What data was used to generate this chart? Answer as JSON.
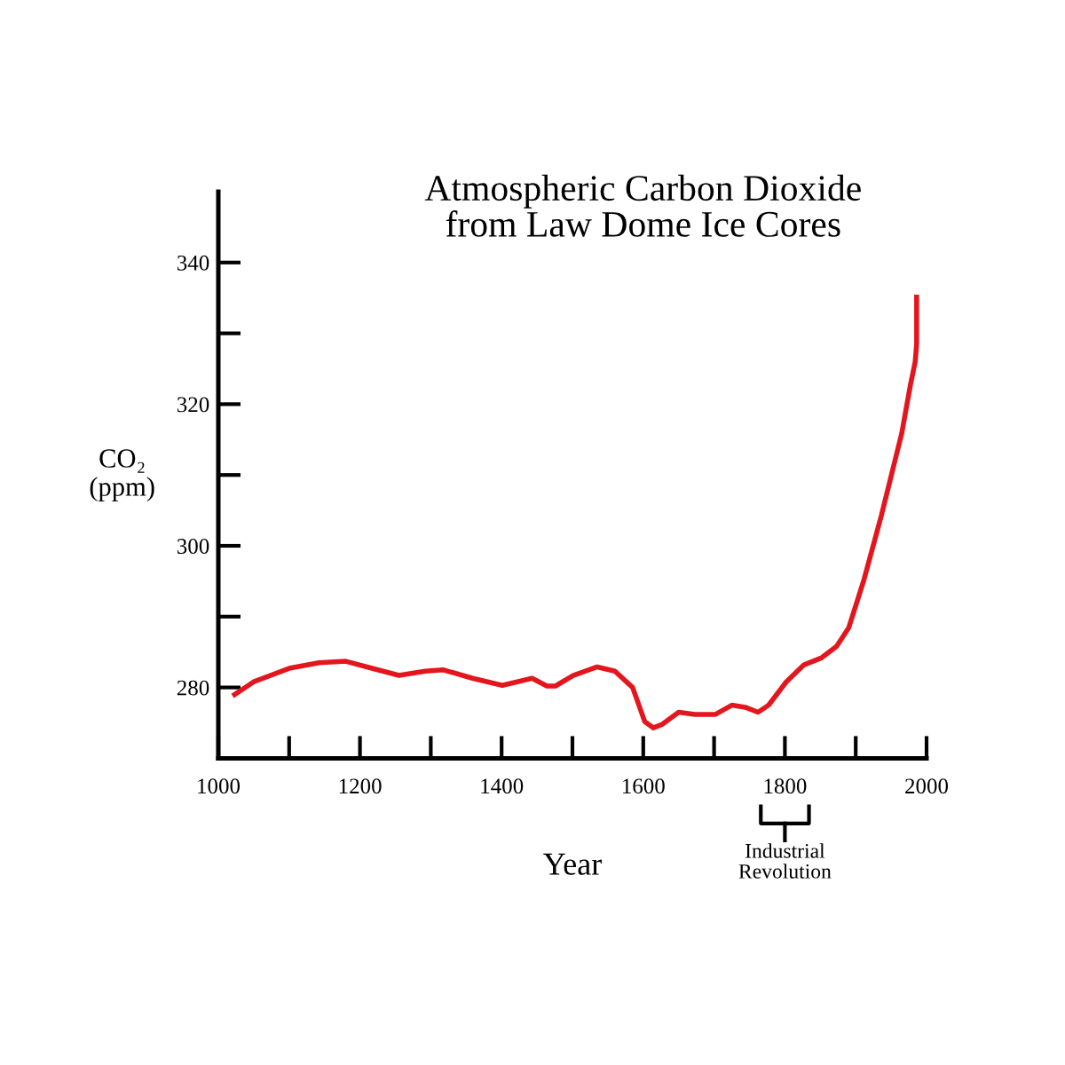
{
  "chart_data": {
    "type": "line",
    "title": "Atmospheric Carbon Dioxide\nfrom Law Dome Ice Cores",
    "xlabel": "Year",
    "ylabel": "CO₂\n(ppm)",
    "series": [
      {
        "color": "#e3161d",
        "x": [
          1023,
          1050,
          1100,
          1142,
          1180,
          1217,
          1255,
          1292,
          1317,
          1359,
          1401,
          1443,
          1464,
          1476,
          1501,
          1535,
          1560,
          1585,
          1602,
          1614,
          1627,
          1650,
          1673,
          1702,
          1725,
          1744,
          1762,
          1777,
          1802,
          1827,
          1852,
          1873,
          1890,
          1911,
          1936,
          1965,
          1977,
          1984,
          1986,
          1986
        ],
        "values": [
          279.0,
          280.8,
          282.7,
          283.5,
          283.7,
          282.7,
          281.7,
          282.3,
          282.5,
          281.3,
          280.3,
          281.3,
          280.2,
          280.2,
          281.7,
          282.9,
          282.3,
          280.0,
          275.2,
          274.3,
          274.8,
          276.5,
          276.2,
          276.2,
          277.5,
          277.2,
          276.5,
          277.5,
          280.8,
          283.2,
          284.2,
          285.8,
          288.4,
          295.0,
          304.2,
          315.9,
          322.6,
          326.0,
          328.5,
          335.1
        ]
      }
    ],
    "xlim": [
      1000,
      2000
    ],
    "xticks": [
      1000,
      {
        "value": 1100,
        "label": null
      },
      1200,
      {
        "value": 1300,
        "label": null
      },
      1400,
      {
        "value": 1500,
        "label": null
      },
      1600,
      {
        "value": 1700,
        "label": null
      },
      1800,
      {
        "value": 1900,
        "label": null
      },
      2000
    ],
    "ylim": [
      270,
      350
    ],
    "yticks": [
      280,
      {
        "value": 290,
        "label": null
      },
      300,
      {
        "value": 310,
        "label": null
      },
      320,
      {
        "value": 330,
        "label": null
      },
      340
    ],
    "annotations": [
      "Industrial\nRevolution"
    ],
    "grid": false,
    "legend": false,
    "marker": "none",
    "line_style": "solid"
  }
}
